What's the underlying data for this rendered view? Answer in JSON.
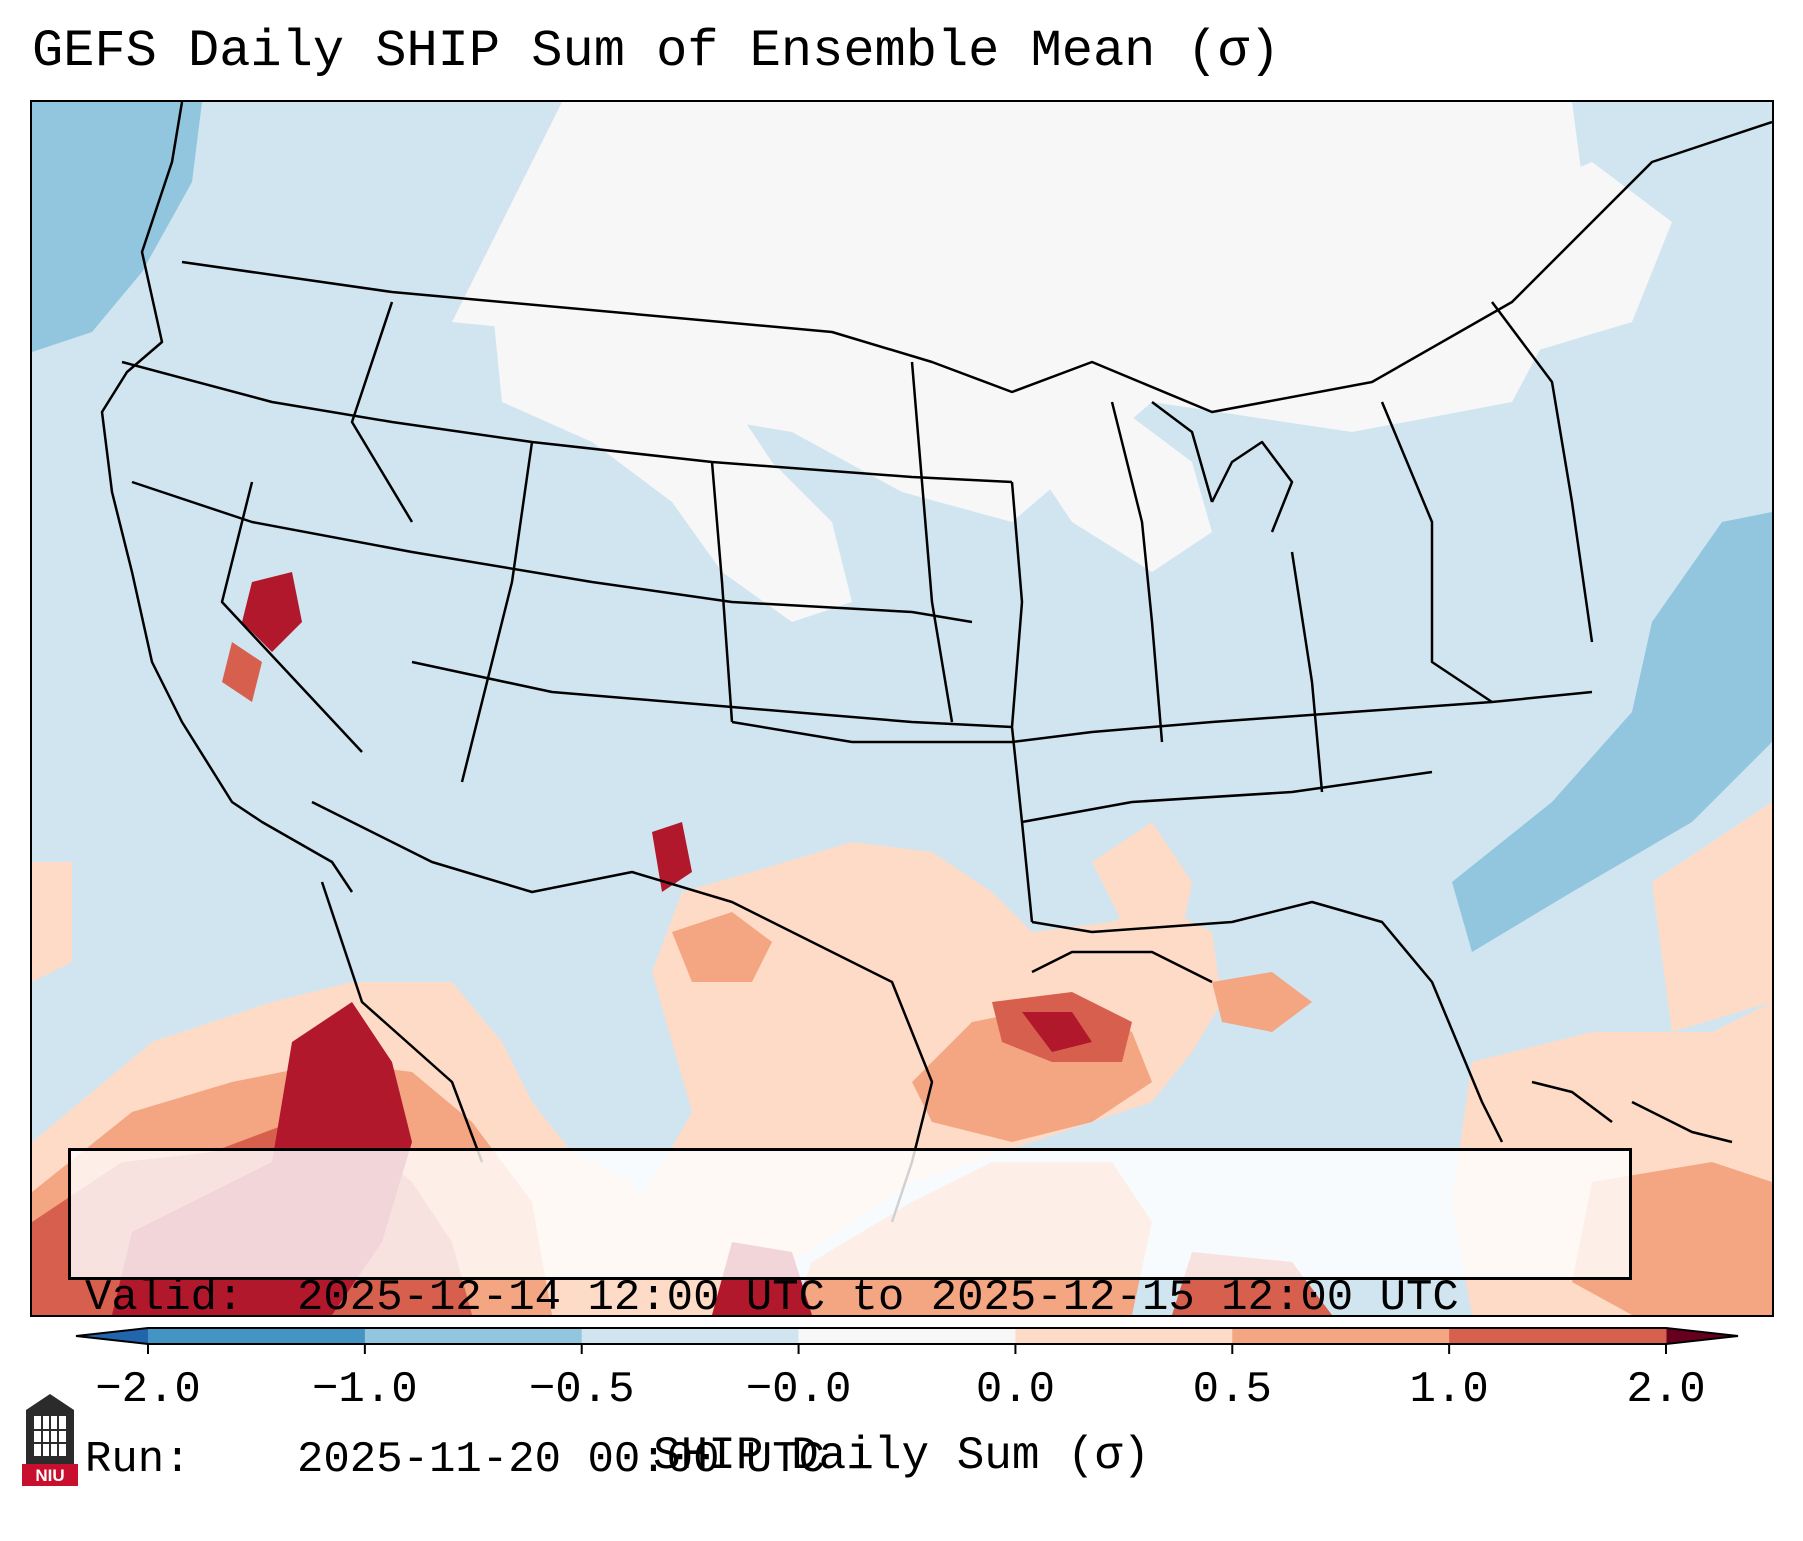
{
  "title": "GEFS Daily SHIP Sum of Ensemble Mean (σ)",
  "info": {
    "valid_label": "Valid:",
    "valid_value": "2025-12-14 12:00 UTC to 2025-12-15 12:00 UTC",
    "run_label": "Run:",
    "run_value": "2025-11-20 00:00 UTC"
  },
  "colorbar": {
    "label": "SHIP Daily Sum (σ)",
    "ticks": [
      "−2.0",
      "−1.0",
      "−0.5",
      "−0.0",
      "0.0",
      "0.5",
      "1.0",
      "2.0"
    ],
    "levels": [
      -2.0,
      -1.0,
      -0.5,
      -0.0,
      0.0,
      0.5,
      1.0,
      2.0
    ],
    "colors": [
      "#4393c3",
      "#92c5de",
      "#d1e5f0",
      "#f7f7f7",
      "#fddbc7",
      "#f4a582",
      "#d6604d",
      "#b2182b"
    ],
    "extend": "both"
  },
  "map": {
    "projection": "Lambert Conformal",
    "region": "CONUS, Mexico and Gulf of Mexico",
    "background_category": "-0.5 to -0.0 (light blue)",
    "hotspots": [
      {
        "area": "Northern Mexico / Sierra Madre",
        "level": "≥ 1.0"
      },
      {
        "area": "Louisiana Gulf coast",
        "level": "≥ 1.0"
      },
      {
        "area": "Western Nevada",
        "level": "≥ 1.0"
      },
      {
        "area": "Southeast New Mexico",
        "level": "≥ 1.0"
      },
      {
        "area": "Caribbean / Greater Antilles",
        "level": "0.5 to 1.0"
      },
      {
        "area": "Western Atlantic",
        "level": "-1.0 to -0.5"
      }
    ]
  },
  "logo": {
    "text": "NIU"
  }
}
